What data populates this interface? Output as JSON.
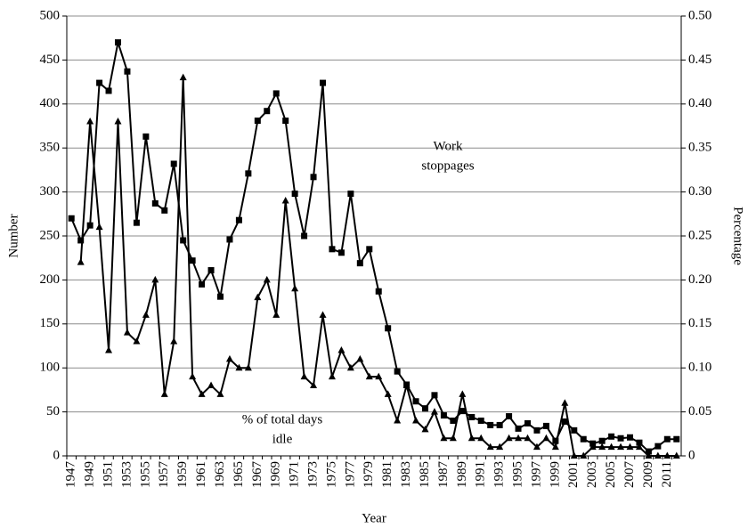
{
  "chart_data": {
    "type": "line",
    "xlabel": "Year",
    "ylabel": "Number",
    "y2label": "Percentage",
    "categories": [
      "1947",
      null,
      "1949",
      null,
      "1951",
      null,
      "1953",
      null,
      "1955",
      null,
      "1957",
      null,
      "1959",
      null,
      "1961",
      null,
      "1963",
      null,
      "1965",
      null,
      "1967",
      null,
      "1969",
      null,
      "1971",
      null,
      "1973",
      null,
      "1975",
      null,
      "1977",
      null,
      "1979",
      null,
      "1981",
      null,
      "1983",
      null,
      "1985",
      null,
      "1987",
      null,
      "1989",
      null,
      "1991",
      null,
      "1993",
      null,
      "1995",
      null,
      "1997",
      null,
      "1999",
      null,
      "2001",
      null,
      "2003",
      null,
      "2005",
      null,
      "2007",
      null,
      "2009",
      null,
      "2011",
      null
    ],
    "ylim": [
      0,
      500
    ],
    "yticks": [
      0,
      50,
      100,
      150,
      200,
      250,
      300,
      350,
      400,
      450,
      500
    ],
    "y2lim": [
      0,
      0.5
    ],
    "y2ticks": [
      0,
      0.05,
      {
        "value": 0.1,
        "label": "0.10"
      },
      0.15,
      {
        "value": 0.2,
        "label": "0.20"
      },
      0.25,
      {
        "value": 0.3,
        "label": "0.30"
      },
      0.35,
      {
        "value": 0.4,
        "label": "0.40"
      },
      0.45,
      {
        "value": 0.5,
        "label": "0.50"
      }
    ],
    "grid": true,
    "series": [
      {
        "color": "#000000",
        "marker": "square",
        "axis": "y",
        "values": [
          270,
          245,
          262,
          424,
          415,
          470,
          437,
          265,
          363,
          287,
          279,
          332,
          245,
          222,
          195,
          211,
          181,
          246,
          268,
          321,
          381,
          392,
          412,
          381,
          298,
          250,
          317,
          424,
          235,
          231,
          298,
          219,
          235,
          187,
          145,
          96,
          81,
          62,
          54,
          69,
          46,
          40,
          51,
          44,
          40,
          35,
          35,
          45,
          31,
          37,
          29,
          34,
          17,
          39,
          29,
          19,
          14,
          17,
          22,
          20,
          21,
          15,
          5,
          11,
          19,
          19
        ]
      },
      {
        "color": "#000000",
        "marker": "triangle",
        "axis": "y2",
        "values": [
          null,
          0.22,
          0.38,
          0.26,
          0.12,
          0.38,
          0.14,
          0.13,
          0.16,
          0.2,
          0.07,
          0.13,
          0.43,
          0.09,
          0.07,
          0.08,
          0.07,
          0.11,
          0.1,
          0.1,
          0.18,
          0.2,
          0.16,
          0.29,
          0.19,
          0.09,
          0.08,
          0.16,
          0.09,
          0.12,
          0.1,
          0.11,
          0.09,
          0.09,
          0.07,
          0.04,
          0.08,
          0.04,
          0.03,
          0.05,
          0.02,
          0.02,
          0.07,
          0.02,
          0.02,
          0.01,
          0.01,
          0.02,
          0.02,
          0.02,
          0.01,
          0.02,
          0.01,
          0.06,
          0,
          0,
          0.01,
          0.01,
          0.01,
          0.01,
          0.01,
          0.01,
          0,
          0,
          0,
          0
        ]
      }
    ],
    "annotations": [
      {
        "lines": [
          "Work",
          "stoppages"
        ]
      },
      {
        "lines": [
          "% of total days",
          "idle"
        ]
      }
    ]
  }
}
